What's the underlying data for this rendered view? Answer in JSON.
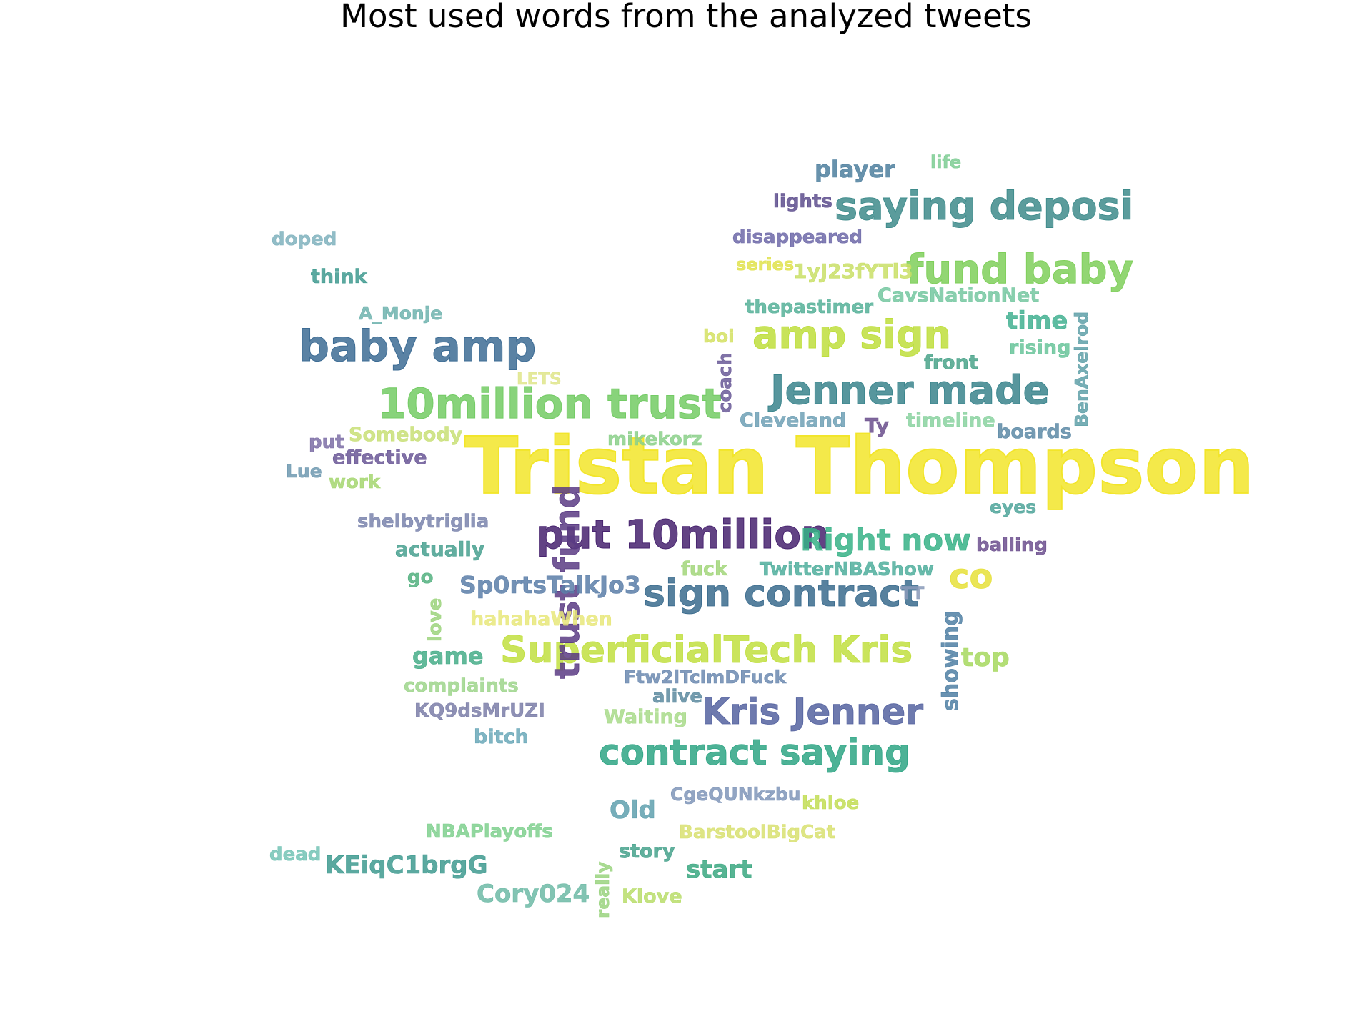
{
  "title": "Most used words from the analyzed tweets",
  "words": [
    {
      "text": "Tristan Thompson",
      "color": "#f2e52a"
    },
    {
      "text": "put 10million",
      "color": "#46226e"
    },
    {
      "text": "baby amp",
      "color": "#3d6c94"
    },
    {
      "text": "10million trust",
      "color": "#73cb64"
    },
    {
      "text": "Jenner made",
      "color": "#39848c"
    },
    {
      "text": "amp sign",
      "color": "#bede3c"
    },
    {
      "text": "saying deposi",
      "color": "#3e8b8b"
    },
    {
      "text": "fund baby",
      "color": "#7fcf5a"
    },
    {
      "text": "SuperficialTech Kris",
      "color": "#c1df3f"
    },
    {
      "text": "sign contract",
      "color": "#3a6b8d"
    },
    {
      "text": "Kris Jenner",
      "color": "#5563a0"
    },
    {
      "text": "contract saying",
      "color": "#2ea584"
    },
    {
      "text": "trust fund",
      "color": "#5a3b84"
    },
    {
      "text": "Right now",
      "color": "#36b186"
    },
    {
      "text": "co",
      "color": "#e6e03a"
    },
    {
      "text": "player",
      "color": "#4e7f9e"
    },
    {
      "text": "life",
      "color": "#7dcc93"
    },
    {
      "text": "lights",
      "color": "#5d4d8d"
    },
    {
      "text": "disappeared",
      "color": "#6d68a8"
    },
    {
      "text": "series",
      "color": "#e0e24c"
    },
    {
      "text": "1yJ23fYTl3",
      "color": "#c9df66"
    },
    {
      "text": "CavsNationNet",
      "color": "#74c7a0"
    },
    {
      "text": "thepastimer",
      "color": "#55b098"
    },
    {
      "text": "time",
      "color": "#42b091"
    },
    {
      "text": "rising",
      "color": "#68c49a"
    },
    {
      "text": "boi",
      "color": "#d3e162"
    },
    {
      "text": "front",
      "color": "#4aa38a"
    },
    {
      "text": "BenAxelrod",
      "color": "#5fa0a8"
    },
    {
      "text": "coach",
      "color": "#6a5a98"
    },
    {
      "text": "Cleveland",
      "color": "#6ea0b5"
    },
    {
      "text": "Ty",
      "color": "#6a4e8c"
    },
    {
      "text": "timeline",
      "color": "#8ad2a0"
    },
    {
      "text": "boards",
      "color": "#5d8aa6"
    },
    {
      "text": "eyes",
      "color": "#4fa49a"
    },
    {
      "text": "balling",
      "color": "#6c4f8e"
    },
    {
      "text": "TwitterNBAShow",
      "color": "#4fae9c"
    },
    {
      "text": "fuck",
      "color": "#a2d67a"
    },
    {
      "text": "TT",
      "color": "#8a9ab8"
    },
    {
      "text": "showing",
      "color": "#4f7fa3"
    },
    {
      "text": "top",
      "color": "#a6d85e"
    },
    {
      "text": "doped",
      "color": "#7fb1bd"
    },
    {
      "text": "think",
      "color": "#3f9a8f"
    },
    {
      "text": "A_Monje",
      "color": "#6fb3ae"
    },
    {
      "text": "LETS",
      "color": "#dfe58a"
    },
    {
      "text": "Somebody",
      "color": "#c8df75"
    },
    {
      "text": "put",
      "color": "#7d6ea6"
    },
    {
      "text": "effective",
      "color": "#6a5796"
    },
    {
      "text": "Lue",
      "color": "#6f99b0"
    },
    {
      "text": "work",
      "color": "#a5d670"
    },
    {
      "text": "mikekorz",
      "color": "#8bd08a"
    },
    {
      "text": "shelbytriglia",
      "color": "#7a84ad"
    },
    {
      "text": "actually",
      "color": "#48a08f"
    },
    {
      "text": "go",
      "color": "#52b07f"
    },
    {
      "text": "Sp0rtsTalkJo3",
      "color": "#5b7ea8"
    },
    {
      "text": "love",
      "color": "#9cd47c"
    },
    {
      "text": "hahahaWhen",
      "color": "#e8e77a"
    },
    {
      "text": "game",
      "color": "#46ad88"
    },
    {
      "text": "complaints",
      "color": "#9dd58b"
    },
    {
      "text": "KQ9dsMrUZI",
      "color": "#7b7ea8"
    },
    {
      "text": "bitch",
      "color": "#6aa8b8"
    },
    {
      "text": "Ftw2lTclmDFuck",
      "color": "#6c8ab0"
    },
    {
      "text": "alive",
      "color": "#5c8a9f"
    },
    {
      "text": "Waiting",
      "color": "#a8da8a"
    },
    {
      "text": "CgeQUNkzbu",
      "color": "#7f95b8"
    },
    {
      "text": "khloe",
      "color": "#c2dd55"
    },
    {
      "text": "Old",
      "color": "#5fa0ae"
    },
    {
      "text": "NBAPlayoffs",
      "color": "#7fd08e"
    },
    {
      "text": "BarstoolBigCat",
      "color": "#d8e070"
    },
    {
      "text": "story",
      "color": "#47a28c"
    },
    {
      "text": "dead",
      "color": "#73c3b5"
    },
    {
      "text": "KEiqC1brgG",
      "color": "#3e9a8f"
    },
    {
      "text": "start",
      "color": "#3aa780"
    },
    {
      "text": "Cory024",
      "color": "#6dbaa6"
    },
    {
      "text": "really",
      "color": "#9ad47f"
    },
    {
      "text": "Klove",
      "color": "#b8dd6a"
    }
  ]
}
